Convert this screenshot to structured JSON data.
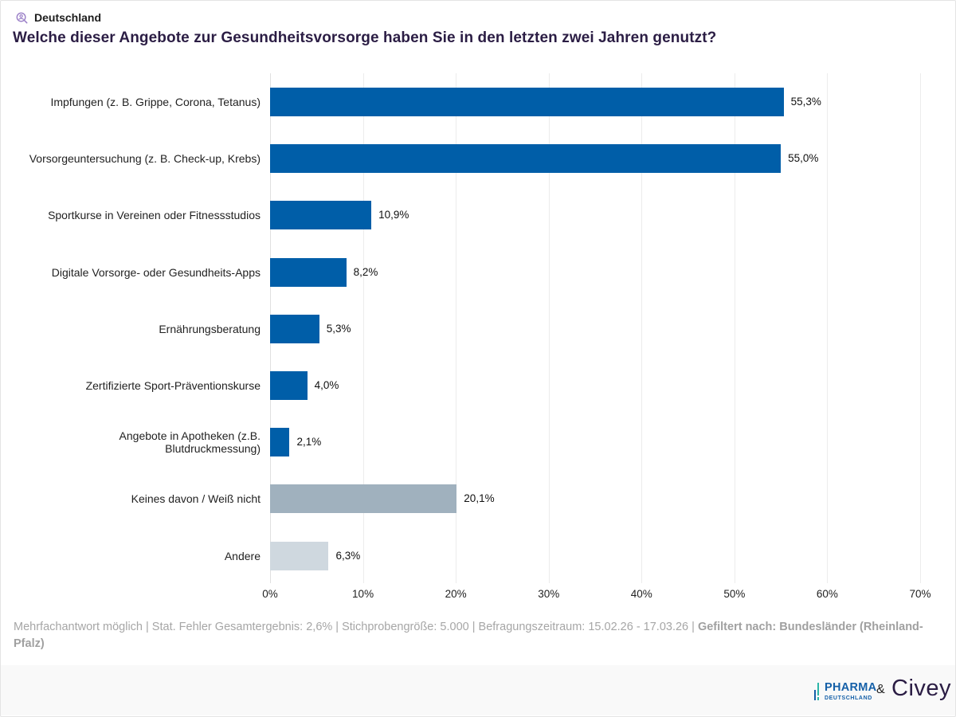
{
  "header": {
    "location_icon": "location-person-search-icon",
    "location": "Deutschland",
    "title": "Welche dieser Angebote zur Gesundheitsvorsorge haben Sie in den letzten zwei Jahren genutzt?"
  },
  "colors": {
    "primary_bar": "#005ea8",
    "none_bar": "#a0b1be",
    "other_bar": "#cfd8df",
    "title": "#2b1d44"
  },
  "chart_data": {
    "type": "bar",
    "orientation": "horizontal",
    "title": "Welche dieser Angebote zur Gesundheitsvorsorge haben Sie in den letzten zwei Jahren genutzt?",
    "xlabel": "",
    "ylabel": "",
    "xlim": [
      0,
      70
    ],
    "grid": true,
    "x_ticks": [
      0,
      10,
      20,
      30,
      40,
      50,
      60,
      70
    ],
    "x_tick_labels": [
      "0%",
      "10%",
      "20%",
      "30%",
      "40%",
      "50%",
      "60%",
      "70%"
    ],
    "categories": [
      "Impfungen (z. B. Grippe, Corona, Tetanus)",
      "Vorsorgeuntersuchung (z. B. Check-up, Krebs)",
      "Sportkurse in Vereinen oder Fitnessstudios",
      "Digitale Vorsorge- oder Gesundheits-Apps",
      "Ernährungsberatung",
      "Zertifizierte Sport-Präventionskurse",
      "Angebote in Apotheken (z.B. Blutdruckmessung)",
      "Keines davon / Weiß nicht",
      "Andere"
    ],
    "values": [
      55.3,
      55.0,
      10.9,
      8.2,
      5.3,
      4.0,
      2.1,
      20.1,
      6.3
    ],
    "value_labels": [
      "55,3%",
      "55,0%",
      "10,9%",
      "8,2%",
      "5,3%",
      "4,0%",
      "2,1%",
      "20,1%",
      "6,3%"
    ],
    "bar_colors": [
      "#005ea8",
      "#005ea8",
      "#005ea8",
      "#005ea8",
      "#005ea8",
      "#005ea8",
      "#005ea8",
      "#a0b1be",
      "#cfd8df"
    ]
  },
  "footer": {
    "note": "Mehrfachantwort möglich | Stat. Fehler Gesamtergebnis: 2,6% | Stichprobengröße: 5.000 | Befragungszeitraum: 15.02.26 - 17.03.26 | ",
    "filter_label": "Gefiltert nach: Bundesländer (Rheinland-Pfalz)",
    "logo_pharma_line1": "PHARMA",
    "logo_pharma_line2": "DEUTSCHLAND",
    "ampersand": "&",
    "logo_civey": "Civey"
  }
}
